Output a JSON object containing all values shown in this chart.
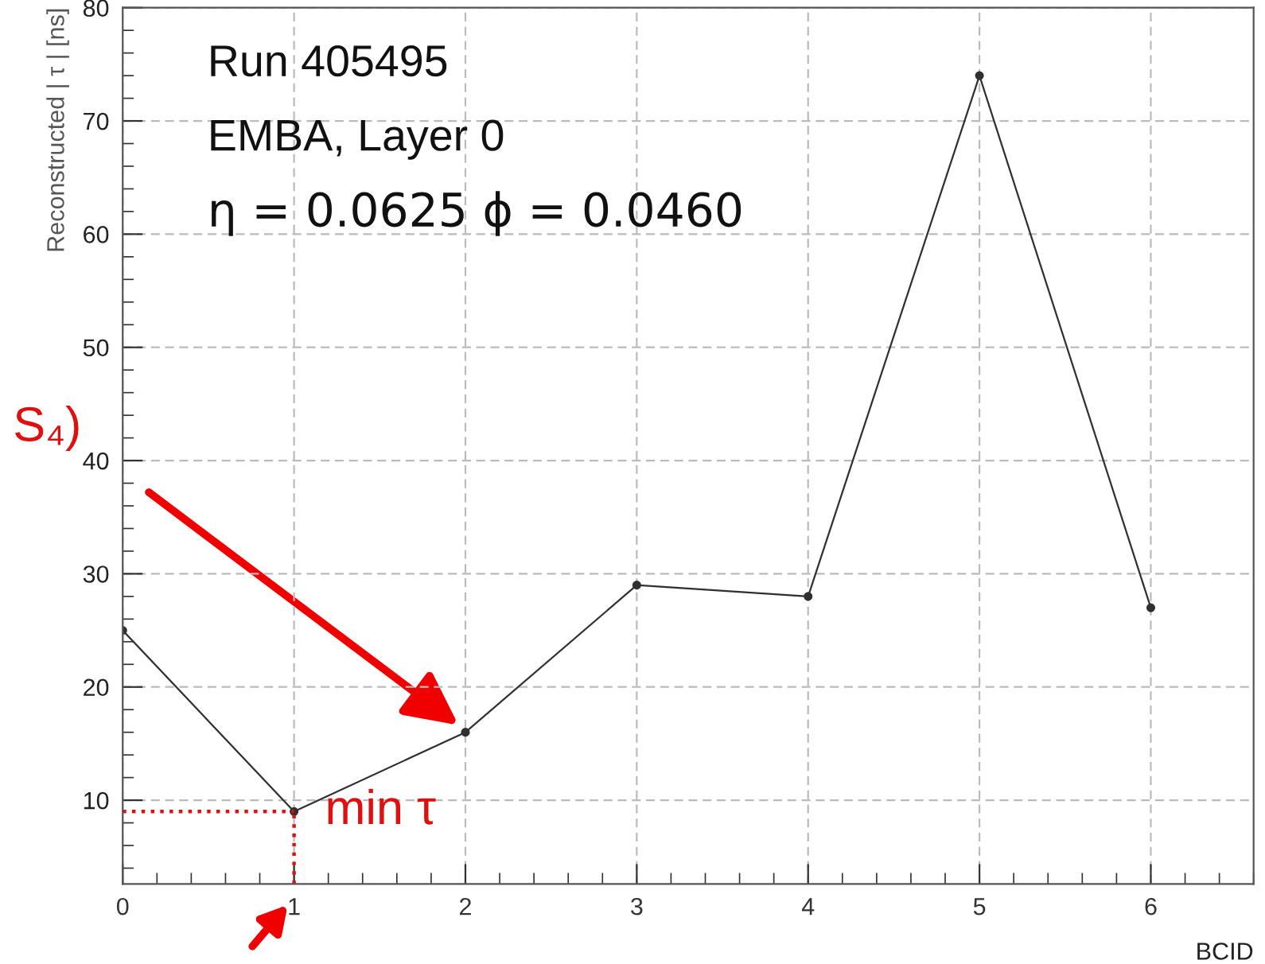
{
  "chart_data": {
    "type": "line",
    "xlabel": "BCID",
    "ylabel": "Reconstructed | τ | [ns]",
    "x": [
      0,
      1,
      2,
      3,
      4,
      5,
      6
    ],
    "series": [
      {
        "color": "#303030",
        "values": [
          25,
          9,
          16,
          29,
          28,
          74,
          27
        ]
      }
    ],
    "xlim": [
      0,
      6.6
    ],
    "xticks": [
      0,
      1,
      2,
      3,
      4,
      5,
      6
    ],
    "ylim": [
      2.6,
      80
    ],
    "yticks": [
      10,
      20,
      30,
      40,
      50,
      60,
      70,
      80
    ],
    "grid": true,
    "marker": "circle",
    "line_style": "solid",
    "ref_lines": [
      {
        "axis": "y",
        "value": 9,
        "color": "#e01010",
        "line_style": "dotted"
      },
      {
        "axis": "x",
        "value": 1,
        "color": "#e01010",
        "line_style": "dotted"
      }
    ],
    "annotations": [
      "Run 405495",
      "EMBA, Layer 0",
      "η = 0.0625 ϕ = 0.0460",
      {
        "text": "min τ",
        "x": 1,
        "y": 9
      },
      "S₄)"
    ]
  }
}
